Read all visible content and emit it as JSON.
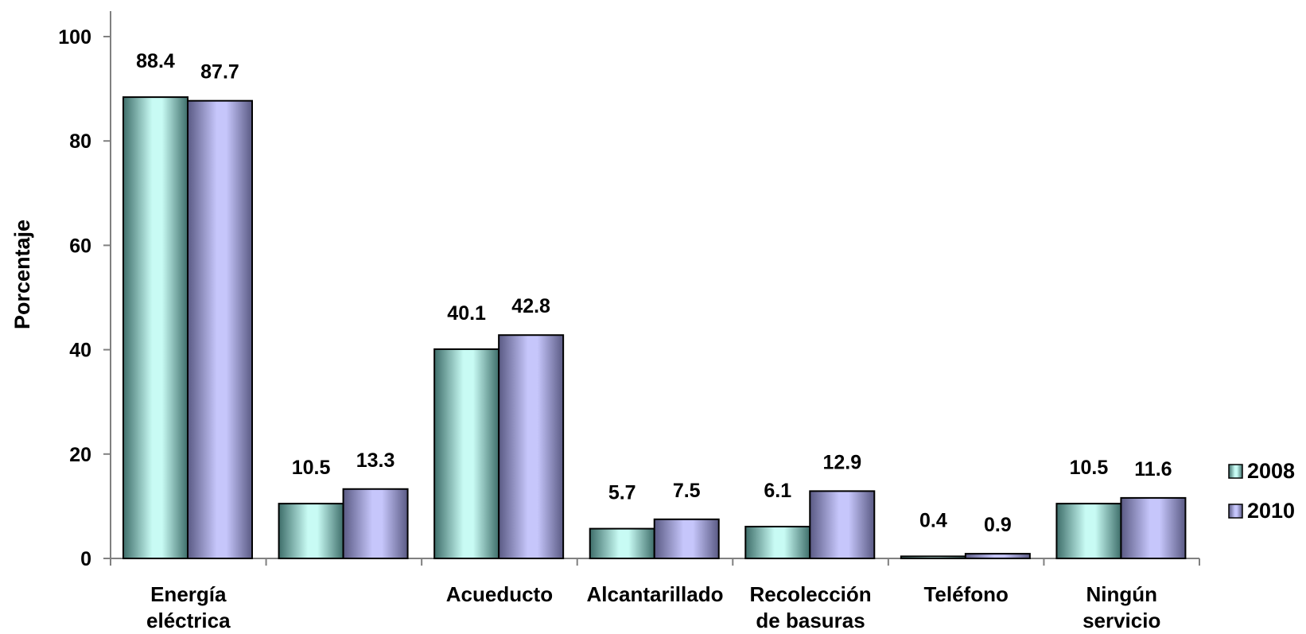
{
  "chart_data": {
    "type": "bar",
    "categories": [
      [
        "Energía",
        "eléctrica"
      ],
      [
        "",
        ""
      ],
      [
        "Acueducto"
      ],
      [
        "Alcantarillado"
      ],
      [
        "Recolección",
        "de basuras"
      ],
      [
        "Teléfono"
      ],
      [
        "Ningún",
        "servicio"
      ]
    ],
    "series": [
      {
        "name": "2008",
        "values": [
          88.4,
          10.5,
          40.1,
          5.7,
          6.1,
          0.4,
          10.5
        ],
        "labels": [
          "88.4",
          "10.5",
          "40.1",
          "5.7",
          "6.1",
          "0.4",
          "10.5"
        ]
      },
      {
        "name": "2010",
        "values": [
          87.7,
          13.3,
          42.8,
          7.5,
          12.9,
          0.9,
          11.6
        ],
        "labels": [
          "87.7",
          "13.3",
          "42.8",
          "7.5",
          "12.9",
          "0.9",
          "11.6"
        ]
      }
    ],
    "ylabel": "Porcentaje",
    "xlabel": "",
    "ylim": [
      0,
      100
    ],
    "yticks": [
      0,
      20,
      40,
      60,
      80,
      100
    ],
    "grid": false,
    "legend_position": "right",
    "colors": {
      "series_2008": "#c8fbf4",
      "series_2008_dark": "#3e6e6a",
      "series_2010": "#c6c6fb",
      "series_2010_dark": "#5a5a84",
      "axis": "#808080"
    }
  }
}
